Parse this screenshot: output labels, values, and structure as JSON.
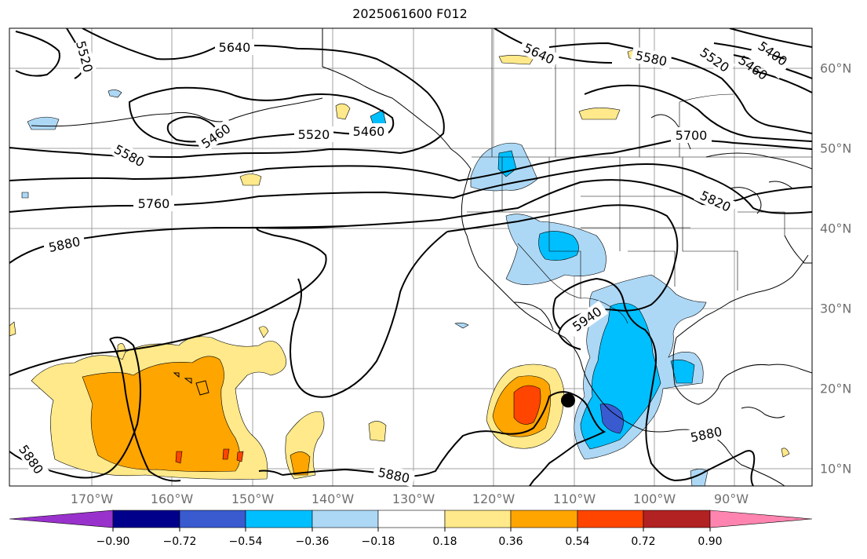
{
  "title": "2025061600 F012",
  "lon_ticks": [
    "170°W",
    "160°W",
    "150°W",
    "140°W",
    "130°W",
    "120°W",
    "110°W",
    "100°W",
    "90°W"
  ],
  "lat_ticks": [
    "60°N",
    "50°N",
    "40°N",
    "30°N",
    "20°N",
    "10°N"
  ],
  "contour_labels": [
    "5520",
    "5640",
    "5640",
    "5580",
    "5520",
    "5460",
    "5400",
    "5460",
    "5520",
    "5460",
    "5580",
    "5700",
    "5760",
    "5820",
    "5880",
    "5940",
    "5880",
    "5880",
    "5880"
  ],
  "colorbar": {
    "ticks": [
      "−0.90",
      "−0.72",
      "−0.54",
      "−0.36",
      "−0.18",
      "0.18",
      "0.36",
      "0.54",
      "0.72",
      "0.90"
    ],
    "colors": [
      "#9932cc",
      "#00008b",
      "#3a5bd0",
      "#00bfff",
      "#add8f5",
      "#ffffff",
      "#ffe98a",
      "#ffa500",
      "#ff4500",
      "#b22222",
      "#ff85b0"
    ]
  }
}
